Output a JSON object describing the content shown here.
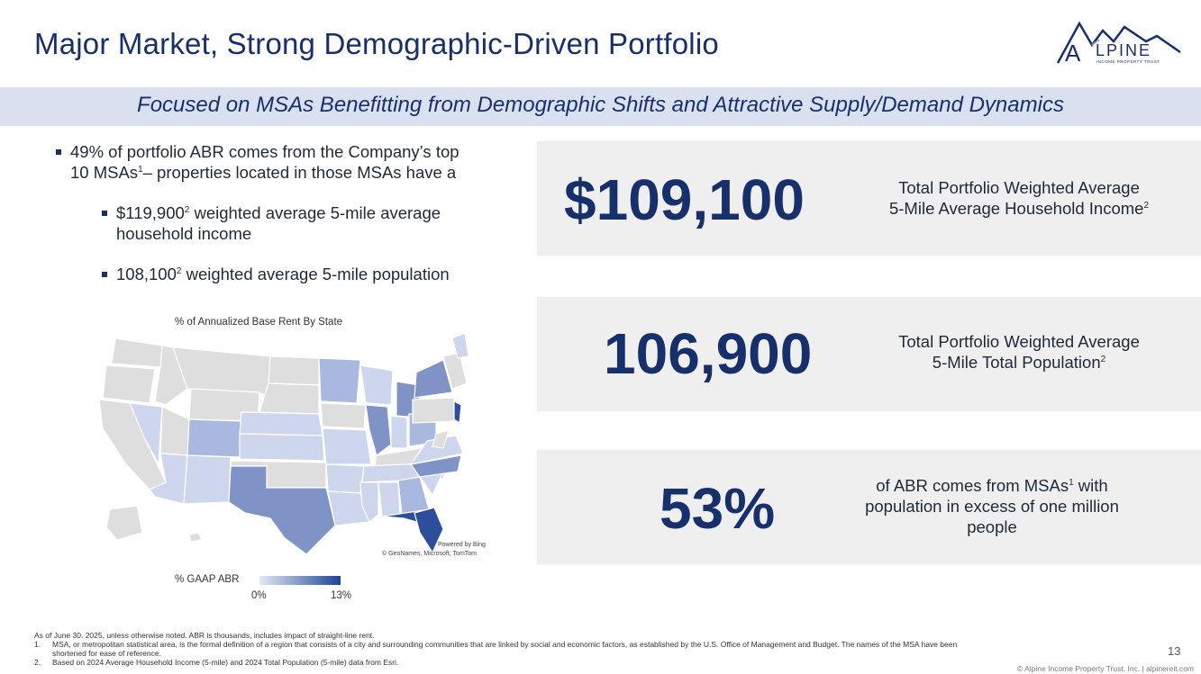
{
  "header": {
    "title": "Major Market, Strong Demographic-Driven Portfolio",
    "logo_text": "LPINE",
    "logo_letter": "A",
    "logo_sub": "INCOME PROPERTY TRUST"
  },
  "banner": {
    "text": "Focused on MSAs Benefitting from Demographic Shifts and Attractive Supply/Demand Dynamics"
  },
  "bullets": {
    "main_line1": "49% of portfolio ABR comes from the Company’s top",
    "main_line2_a": "10 MSAs",
    "main_line2_sup": "1",
    "main_line2_b": "– properties located in those MSAs have a",
    "sub1_a": "$119,900",
    "sub1_sup": "2",
    "sub1_b": " weighted average 5-mile average",
    "sub1_line2": "household income",
    "sub2_a": "108,100",
    "sub2_sup": "2",
    "sub2_b": " weighted average 5-mile population"
  },
  "map": {
    "title": "% of Annualized Base Rent By State",
    "powered": "Powered by Bing",
    "attribution": "© GeoNames, Microsoft, TomTom",
    "legend_label": "% GAAP ABR",
    "legend_min": "0%",
    "legend_max": "13%"
  },
  "stats": [
    {
      "value": "$109,100",
      "desc_line1": "Total Portfolio Weighted Average",
      "desc_line2": "5-Mile Average Household Income",
      "desc_sup": "2"
    },
    {
      "value": "106,900",
      "desc_line1": "Total Portfolio Weighted Average",
      "desc_line2": "5-Mile Total Population",
      "desc_sup": "2"
    },
    {
      "value": "53%",
      "desc_line1_a": "of ABR comes from MSAs",
      "desc_line1_sup": "1",
      "desc_line1_b": " with",
      "desc_line2": "population in excess of one million",
      "desc_line3": "people"
    }
  ],
  "footnotes": {
    "intro": "As of June 30. 2025, unless otherwise noted. ABR is thousands, includes impact of straight-line rent.",
    "n1_num": "1.",
    "n1_line1": "MSA, or metropolitan statistical area, is the formal definition of a region that consists of a city and surrounding communities that are linked by social and economic factors, as established by the U.S. Office of Management and Budget. The names of the MSA have been",
    "n1_line2": "shortened for ease of reference.",
    "n2_num": "2.",
    "n2_text": "Based on 2024 Average Household Income (5-mile) and 2024 Total Population (5-mile) data from Esri."
  },
  "page_number": "13",
  "copyright": "© Alpine Income Property Trust, Inc.  |  alpinereit.com",
  "colors": {
    "navy": "#17306b",
    "banner": "#d9e1f1",
    "stat_bg": "#efefef",
    "state_none": "#dedede",
    "state_low": "#cdd6ec",
    "state_mid": "#a9b8de",
    "state_high": "#7f93c7",
    "state_top": "#2d4f9b"
  }
}
